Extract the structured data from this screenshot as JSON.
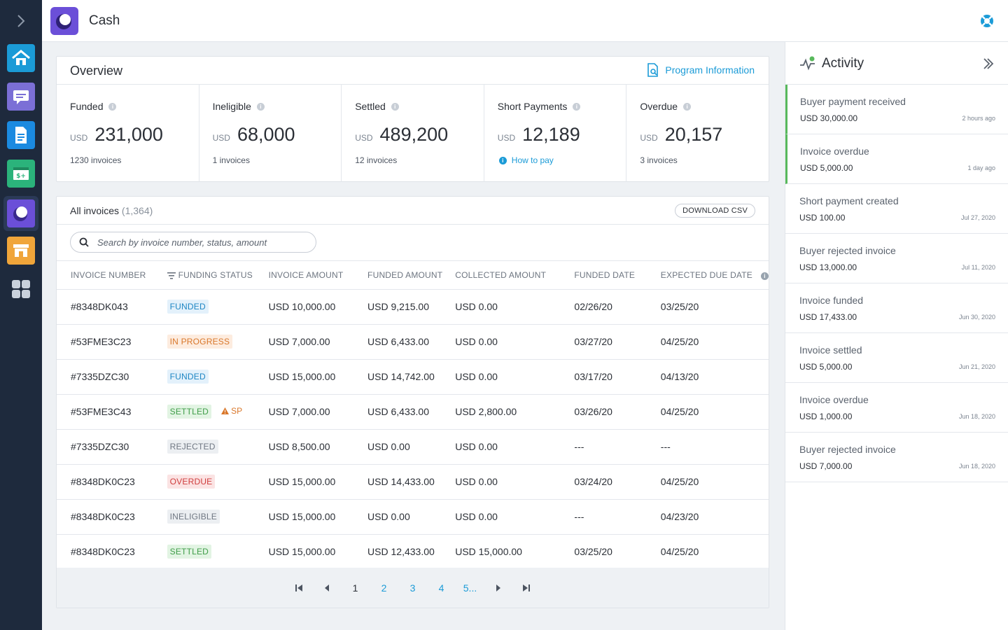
{
  "app": {
    "title": "Cash"
  },
  "sidebar": {
    "apps": [
      {
        "name": "home",
        "color": "#1b9bd7"
      },
      {
        "name": "messages",
        "color": "#7b6fd6"
      },
      {
        "name": "documents",
        "color": "#1b8ae0"
      },
      {
        "name": "payments",
        "color": "#2bb37b"
      },
      {
        "name": "cash",
        "color": "#6b4fd8"
      },
      {
        "name": "store",
        "color": "#f0a53a"
      },
      {
        "name": "apps",
        "color": "#c9d1dc"
      }
    ]
  },
  "overview": {
    "title": "Overview",
    "program_info": "Program Information",
    "stats": [
      {
        "label": "Funded",
        "currency": "USD",
        "value": "231,000",
        "sub": "1230 invoices"
      },
      {
        "label": "Ineligible",
        "currency": "USD",
        "value": "68,000",
        "sub": "1 invoices"
      },
      {
        "label": "Settled",
        "currency": "USD",
        "value": "489,200",
        "sub": "12 invoices"
      },
      {
        "label": "Short Payments",
        "currency": "USD",
        "value": "12,189",
        "link": "How to pay"
      },
      {
        "label": "Overdue",
        "currency": "USD",
        "value": "20,157",
        "sub": "3 invoices"
      }
    ]
  },
  "invoices": {
    "title": "All invoices",
    "count": "(1,364)",
    "download": "DOWNLOAD CSV",
    "search_placeholder": "Search by invoice number, status, amount",
    "columns": [
      "INVOICE NUMBER",
      "FUNDING STATUS",
      "INVOICE AMOUNT",
      "FUNDED AMOUNT",
      "COLLECTED AMOUNT",
      "FUNDED DATE",
      "EXPECTED DUE DATE"
    ],
    "rows": [
      {
        "number": "#8348DK043",
        "status": "FUNDED",
        "invoice_amount": "USD 10,000.00",
        "funded_amount": "USD 9,215.00",
        "collected_amount": "USD 0.00",
        "funded_date": "02/26/20",
        "due_date": "03/25/20"
      },
      {
        "number": "#53FME3C23",
        "status": "IN PROGRESS",
        "invoice_amount": "USD 7,000.00",
        "funded_amount": "USD 6,433.00",
        "collected_amount": "USD 0.00",
        "funded_date": "03/27/20",
        "due_date": "04/25/20"
      },
      {
        "number": "#7335DZC30",
        "status": "FUNDED",
        "invoice_amount": "USD 15,000.00",
        "funded_amount": "USD 14,742.00",
        "collected_amount": "USD 0.00",
        "funded_date": "03/17/20",
        "due_date": "04/13/20"
      },
      {
        "number": "#53FME3C43",
        "status": "SETTLED",
        "flag": "SP",
        "invoice_amount": "USD 7,000.00",
        "funded_amount": "USD 6,433.00",
        "collected_amount": "USD 2,800.00",
        "funded_date": "03/26/20",
        "due_date": "04/25/20"
      },
      {
        "number": "#7335DZC30",
        "status": "REJECTED",
        "invoice_amount": "USD 8,500.00",
        "funded_amount": "USD 0.00",
        "collected_amount": "USD 0.00",
        "funded_date": "---",
        "due_date": "---"
      },
      {
        "number": "#8348DK0C23",
        "status": "OVERDUE",
        "invoice_amount": "USD 15,000.00",
        "funded_amount": "USD 14,433.00",
        "collected_amount": "USD 0.00",
        "funded_date": "03/24/20",
        "due_date": "04/25/20"
      },
      {
        "number": "#8348DK0C23",
        "status": "INELIGIBLE",
        "invoice_amount": "USD 15,000.00",
        "funded_amount": "USD 0.00",
        "collected_amount": "USD 0.00",
        "funded_date": "---",
        "due_date": "04/23/20"
      },
      {
        "number": "#8348DK0C23",
        "status": "SETTLED",
        "invoice_amount": "USD 15,000.00",
        "funded_amount": "USD 12,433.00",
        "collected_amount": "USD 15,000.00",
        "funded_date": "03/25/20",
        "due_date": "04/25/20"
      }
    ],
    "pagination": {
      "pages": [
        "1",
        "2",
        "3",
        "4",
        "5..."
      ],
      "current": "1"
    }
  },
  "activity": {
    "title": "Activity",
    "items": [
      {
        "title": "Buyer payment received",
        "amount": "USD 30,000.00",
        "date": "2 hours ago",
        "new": true
      },
      {
        "title": "Invoice overdue",
        "amount": "USD 5,000.00",
        "date": "1 day ago",
        "new": true
      },
      {
        "title": "Short payment created",
        "amount": "USD 100.00",
        "date": "Jul 27, 2020",
        "new": false
      },
      {
        "title": "Buyer rejected invoice",
        "amount": "USD 13,000.00",
        "date": "Jul 11, 2020",
        "new": false
      },
      {
        "title": "Invoice funded",
        "amount": "USD 17,433.00",
        "date": "Jun 30, 2020",
        "new": false
      },
      {
        "title": "Invoice settled",
        "amount": "USD 5,000.00",
        "date": "Jun 21, 2020",
        "new": false
      },
      {
        "title": "Invoice overdue",
        "amount": "USD 1,000.00",
        "date": "Jun 18, 2020",
        "new": false
      },
      {
        "title": "Buyer rejected invoice",
        "amount": "USD 7,000.00",
        "date": "Jun 18, 2020",
        "new": false
      }
    ]
  },
  "colors": {
    "accent": "#1b9bd7",
    "brand": "#6b4fd8",
    "sidebar": "#1e2a3d",
    "new_item": "#58b95c"
  }
}
